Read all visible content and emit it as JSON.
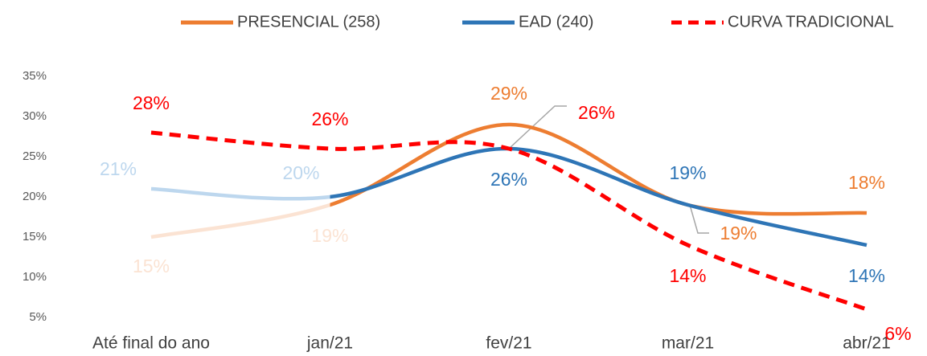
{
  "chart_data": {
    "type": "line",
    "categories": [
      "Até final do ano",
      "jan/21",
      "fev/21",
      "mar/21",
      "abr/21"
    ],
    "series": [
      {
        "name": "PRESENCIAL (258)",
        "color": "#ED7D31",
        "values": [
          15,
          19,
          29,
          19,
          18
        ],
        "value_labels": [
          "15%",
          "19%",
          "29%",
          "19%",
          "18%"
        ]
      },
      {
        "name": "EAD (240)",
        "color": "#2E75B6",
        "values": [
          21,
          20,
          26,
          19,
          14
        ],
        "value_labels": [
          "21%",
          "20%",
          "26%",
          "19%",
          "14%"
        ]
      },
      {
        "name": "CURVA TRADICIONAL",
        "color": "#FF0000",
        "dashed": true,
        "values": [
          28,
          26,
          26,
          14,
          6
        ],
        "value_labels": [
          "28%",
          "26%",
          "26%",
          "14%",
          "6%"
        ]
      }
    ],
    "ylim": [
      5,
      35
    ],
    "yticks": [
      {
        "value": 5,
        "label": "5%"
      },
      {
        "value": 10,
        "label": "10%"
      },
      {
        "value": 15,
        "label": "15%"
      },
      {
        "value": 20,
        "label": "20%"
      },
      {
        "value": 25,
        "label": "25%"
      },
      {
        "value": 30,
        "label": "30%"
      },
      {
        "value": 35,
        "label": "35%"
      }
    ],
    "grid": false,
    "legend": "top"
  }
}
